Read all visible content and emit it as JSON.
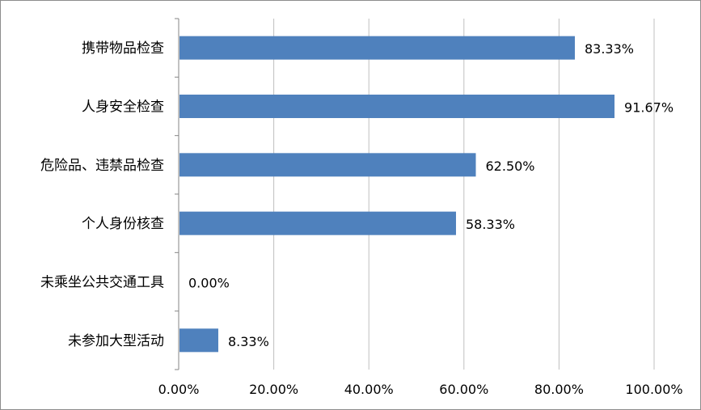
{
  "chart_data": {
    "type": "bar",
    "orientation": "horizontal",
    "categories": [
      "携带物品检查",
      "人身安全检查",
      "危险品、违禁品检查",
      "个人身份核查",
      "未乘坐公共交通工具",
      "未参加大型活动"
    ],
    "values": [
      83.33,
      91.67,
      62.5,
      58.33,
      0.0,
      8.33
    ],
    "value_labels": [
      "83.33%",
      "91.67%",
      "62.50%",
      "58.33%",
      "0.00%",
      "8.33%"
    ],
    "x_ticks": [
      "0.00%",
      "20.00%",
      "40.00%",
      "60.00%",
      "80.00%",
      "100.00%"
    ],
    "xlim": [
      0,
      100
    ],
    "grid": true,
    "bar_color": "#4f81bd",
    "grid_color": "#bfbfbf",
    "axis_color": "#868686"
  }
}
